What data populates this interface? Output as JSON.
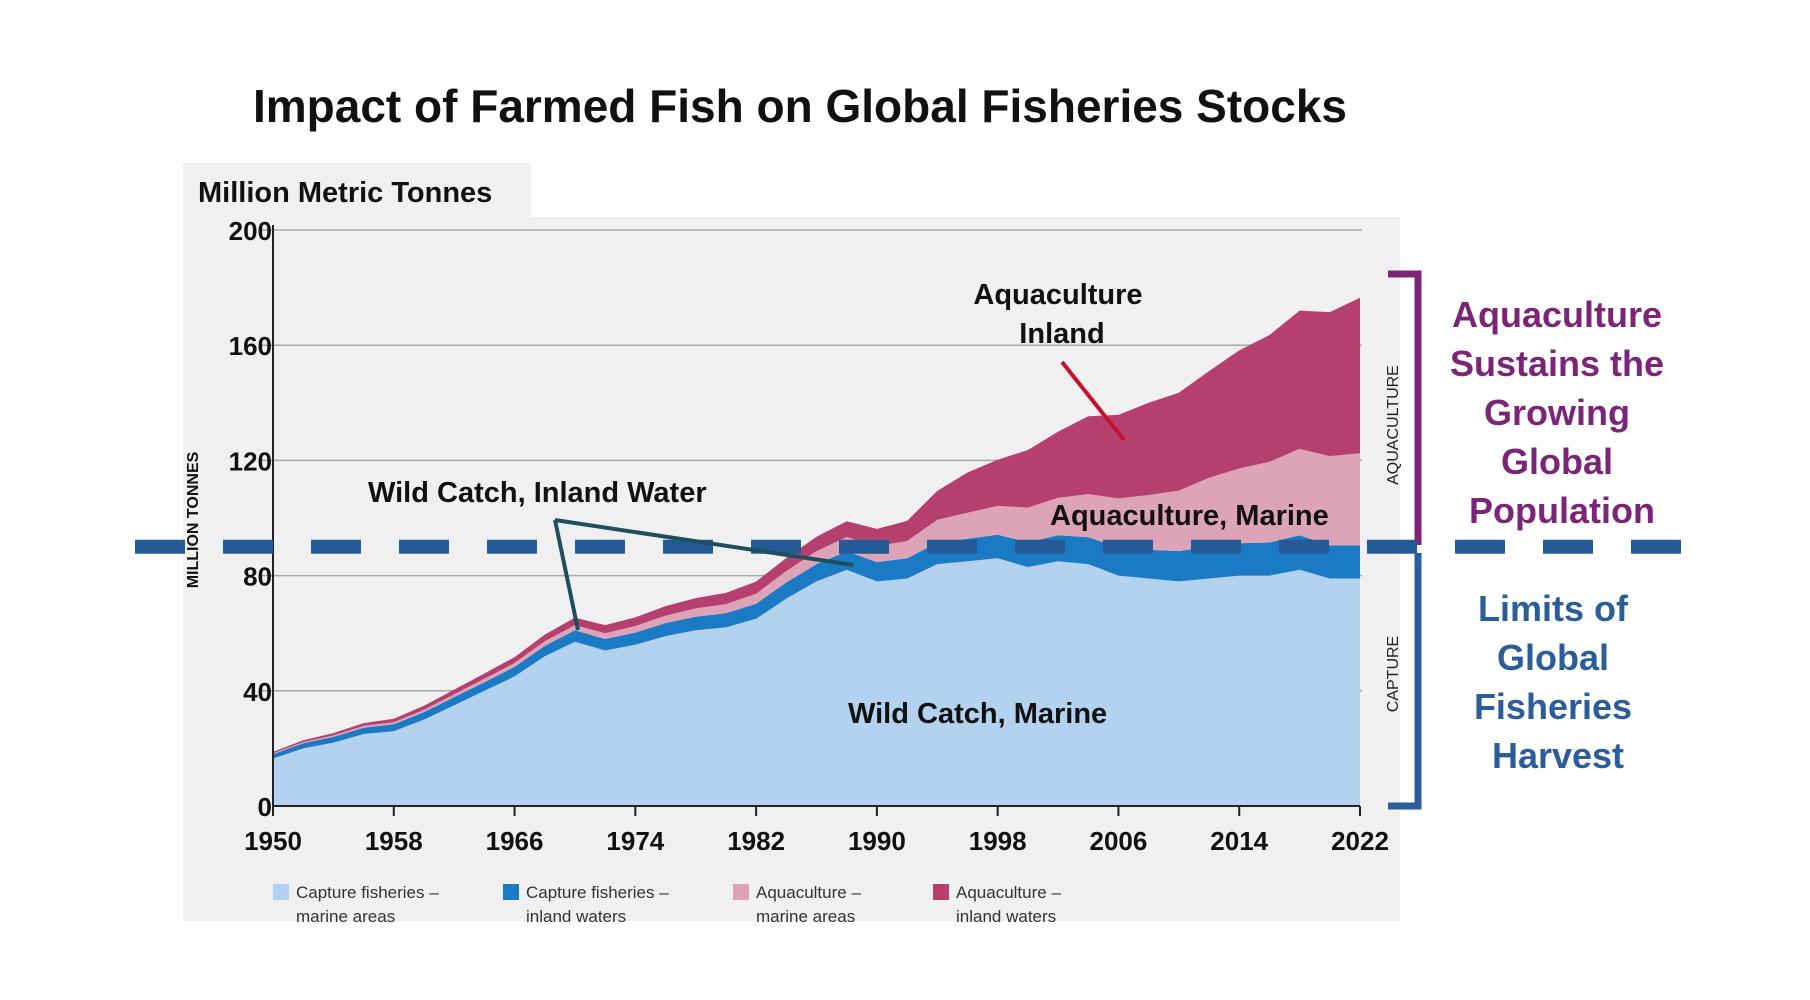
{
  "page": {
    "title": "Impact of Farmed Fish on Global Fisheries Stocks",
    "units_box": "Million Metric Tonnes",
    "y_axis_label": "MILLION TONNES"
  },
  "side_labels": {
    "aquaculture_tag": "AQUACULTURE",
    "capture_tag": "CAPTURE",
    "aquaculture_text": [
      "Aquaculture",
      "Sustains the",
      "Growing",
      "Global",
      "Population"
    ],
    "capture_text": [
      "Limits of",
      "Global",
      "Fisheries",
      "Harvest"
    ]
  },
  "annotations": {
    "aquaculture_inland": [
      "Aquaculture",
      "Inland"
    ],
    "aquaculture_marine": "Aquaculture, Marine",
    "wild_inland": "Wild Catch, Inland Water",
    "wild_marine": "Wild Catch, Marine"
  },
  "colors": {
    "capture_marine": "#b3d2ef",
    "capture_inland": "#1a7ac4",
    "aquaculture_marine": "#dda4b8",
    "aquaculture_inland": "#b5406e",
    "plot_bg": "#f0f0f0",
    "title_purple": "#7b2478",
    "capture_blue": "#2a5d9a",
    "dashed_line": "#245a95",
    "pointer_red": "#c8102e",
    "pointer_teal": "#1f4e5f"
  },
  "chart_data": {
    "type": "area",
    "stacked": true,
    "xlabel": "",
    "ylabel": "MILLION TONNES",
    "ylim": [
      0,
      200
    ],
    "yticks": [
      0,
      40,
      80,
      120,
      160,
      200
    ],
    "xticks": [
      1950,
      1958,
      1966,
      1974,
      1982,
      1990,
      1998,
      2006,
      2014,
      2022
    ],
    "x": [
      1950,
      1952,
      1954,
      1956,
      1958,
      1960,
      1962,
      1964,
      1966,
      1968,
      1970,
      1972,
      1974,
      1976,
      1978,
      1980,
      1982,
      1984,
      1986,
      1988,
      1990,
      1992,
      1994,
      1996,
      1998,
      2000,
      2002,
      2004,
      2006,
      2008,
      2010,
      2012,
      2014,
      2016,
      2018,
      2020,
      2022
    ],
    "series": [
      {
        "name": "Capture fisheries – marine areas",
        "color_key": "capture_marine",
        "values": [
          16.5,
          20,
          22,
          25,
          26,
          30,
          35,
          40,
          45,
          52,
          57,
          54,
          56,
          59,
          61,
          62,
          65,
          72,
          78,
          82,
          78,
          79,
          84,
          85,
          86,
          83,
          85,
          84,
          80,
          79,
          78,
          79,
          80,
          80,
          82,
          79,
          79
        ]
      },
      {
        "name": "Capture fisheries – inland waters",
        "color_key": "capture_inland",
        "values": [
          1.5,
          1.8,
          2,
          2.2,
          2.4,
          2.6,
          2.8,
          3,
          3.3,
          3.6,
          4,
          4,
          4.2,
          4.5,
          4.7,
          4.9,
          5.2,
          5.6,
          6,
          6.4,
          6.7,
          7,
          7.4,
          7.8,
          8.2,
          8.6,
          9,
          9.3,
          9.8,
          10,
          10.5,
          11,
          11.2,
          11.5,
          12,
          11.5,
          11.5
        ]
      },
      {
        "name": "Aquaculture – marine areas",
        "color_key": "aquaculture_marine",
        "values": [
          0.3,
          0.4,
          0.5,
          0.6,
          0.7,
          0.8,
          1,
          1.2,
          1.4,
          1.6,
          1.8,
          2,
          2.3,
          2.6,
          2.9,
          3.2,
          3.5,
          4,
          4.5,
          5,
          5.5,
          6,
          8,
          9,
          10,
          12,
          13,
          15,
          17,
          19,
          21,
          24,
          26,
          28,
          30,
          31,
          32
        ]
      },
      {
        "name": "Aquaculture – inland waters",
        "color_key": "aquaculture_inland",
        "values": [
          0.5,
          0.6,
          0.8,
          1,
          1.2,
          1.4,
          1.6,
          1.8,
          2,
          2.3,
          2.6,
          2.8,
          3,
          3.3,
          3.6,
          3.9,
          4.2,
          4.5,
          5,
          5.5,
          6,
          7,
          10,
          14,
          16,
          20,
          23,
          27,
          29,
          32,
          34,
          37,
          41,
          44,
          48,
          50,
          54
        ]
      }
    ],
    "reference_line": {
      "y": 90,
      "style": "dashed"
    },
    "legend": [
      {
        "label": [
          "Capture fisheries –",
          "marine areas"
        ],
        "color_key": "capture_marine"
      },
      {
        "label": [
          "Capture fisheries –",
          "inland waters"
        ],
        "color_key": "capture_inland"
      },
      {
        "label": [
          "Aquaculture –",
          "marine areas"
        ],
        "color_key": "aquaculture_marine"
      },
      {
        "label": [
          "Aquaculture –",
          "inland waters"
        ],
        "color_key": "aquaculture_inland"
      }
    ],
    "legend_position": "bottom"
  }
}
